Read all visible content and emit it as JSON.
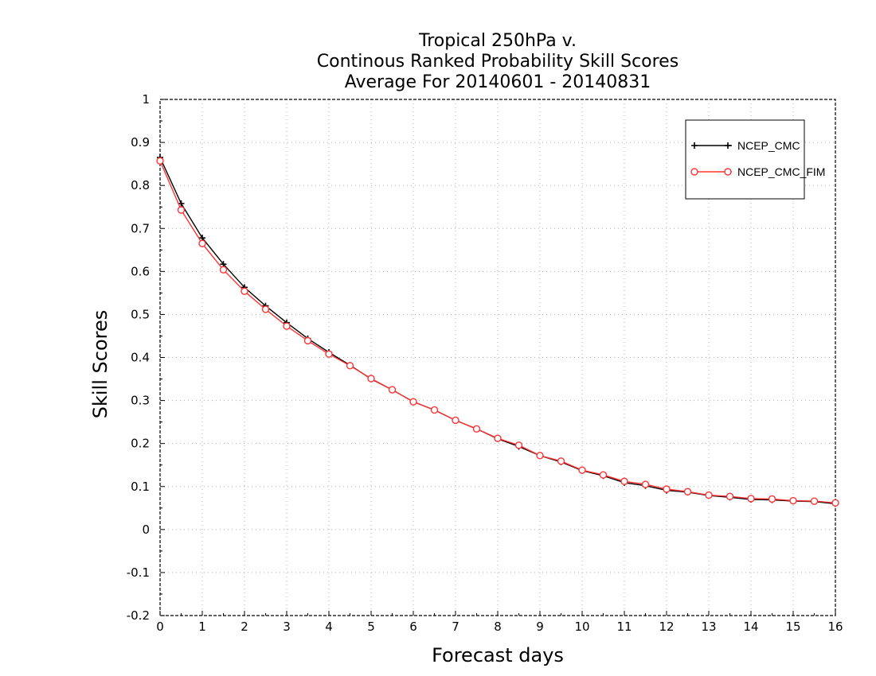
{
  "chart_data": {
    "type": "line",
    "title_lines": [
      "Tropical 250hPa v.",
      "Continous Ranked Probability Skill Scores",
      "Average For 20140601 - 20140831"
    ],
    "xlabel": "Forecast days",
    "ylabel": "Skill Scores",
    "xlim": [
      0,
      16
    ],
    "ylim": [
      -0.2,
      1
    ],
    "x_ticks": [
      0,
      1,
      2,
      3,
      4,
      5,
      6,
      7,
      8,
      9,
      10,
      11,
      12,
      13,
      14,
      15,
      16
    ],
    "x_tick_labels": [
      "0",
      "1",
      "2",
      "3",
      "4",
      "5",
      "6",
      "7",
      "8",
      "9",
      "10",
      "11",
      "12",
      "13",
      "14",
      "15",
      "16"
    ],
    "y_ticks": [
      -0.2,
      -0.1,
      0,
      0.1,
      0.2,
      0.3,
      0.4,
      0.5,
      0.6,
      0.7,
      0.8,
      0.9,
      1
    ],
    "y_tick_labels": [
      "-0.2",
      "-0.1",
      "0",
      "0.1",
      "0.2",
      "0.3",
      "0.4",
      "0.5",
      "0.6",
      "0.7",
      "0.8",
      "0.9",
      "1"
    ],
    "grid": true,
    "legend_position": "top-right",
    "x": [
      0,
      0.5,
      1,
      1.5,
      2,
      2.5,
      3,
      3.5,
      4,
      4.5,
      5,
      5.5,
      6,
      6.5,
      7,
      7.5,
      8,
      8.5,
      9,
      9.5,
      10,
      10.5,
      11,
      11.5,
      12,
      12.5,
      13,
      13.5,
      14,
      14.5,
      15,
      15.5,
      16
    ],
    "series": [
      {
        "name": "NCEP_CMC",
        "color": "#000000",
        "marker": "plus",
        "values": [
          0.865,
          0.758,
          0.678,
          0.617,
          0.563,
          0.52,
          0.481,
          0.444,
          0.412,
          0.382,
          0.35,
          0.325,
          0.297,
          0.278,
          0.254,
          0.234,
          0.211,
          0.193,
          0.172,
          0.157,
          0.137,
          0.125,
          0.109,
          0.102,
          0.091,
          0.087,
          0.079,
          0.075,
          0.07,
          0.069,
          0.066,
          0.065,
          0.06
        ]
      },
      {
        "name": "NCEP_CMC_FIM",
        "color": "#ff3333",
        "marker": "circle",
        "values": [
          0.857,
          0.743,
          0.665,
          0.604,
          0.554,
          0.512,
          0.473,
          0.439,
          0.408,
          0.381,
          0.351,
          0.325,
          0.297,
          0.278,
          0.254,
          0.234,
          0.212,
          0.196,
          0.172,
          0.159,
          0.138,
          0.127,
          0.112,
          0.105,
          0.094,
          0.088,
          0.08,
          0.077,
          0.072,
          0.071,
          0.067,
          0.066,
          0.062
        ]
      }
    ]
  }
}
